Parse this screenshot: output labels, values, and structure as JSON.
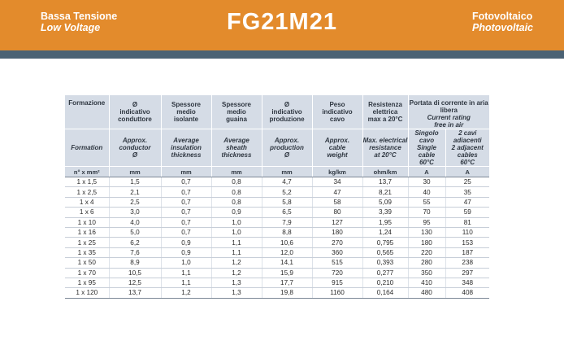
{
  "header": {
    "left_it": "Bassa Tensione",
    "left_en": "Low Voltage",
    "title": "FG21M21",
    "right_it": "Fotovoltaico",
    "right_en": "Photovoltaic"
  },
  "colors": {
    "header": "#e38b2c",
    "band": "#4b6274",
    "table_head": "#d5dce6"
  },
  "table": {
    "head_it": {
      "formation": "Formazione",
      "diam_conductor": [
        "Ø",
        "indicativo",
        "conduttore"
      ],
      "insulation": [
        "Spessore",
        "medio",
        "isolante"
      ],
      "sheath": [
        "Spessore",
        "medio",
        "guaina"
      ],
      "diam_production": [
        "Ø",
        "indicativo",
        "produzione"
      ],
      "weight": [
        "Peso",
        "indicativo",
        "cavo"
      ],
      "resistance": [
        "Resistenza",
        "elettrica",
        "max a 20°C"
      ],
      "current": "Portata di corrente in aria libera"
    },
    "head_en": {
      "formation": "Formation",
      "diam_conductor": [
        "Approx.",
        "conductor",
        "Ø"
      ],
      "insulation": [
        "Average",
        "insulation",
        "thickness"
      ],
      "sheath": [
        "Average",
        "sheath",
        "thickness"
      ],
      "diam_production": [
        "Approx.",
        "production",
        "Ø"
      ],
      "weight": [
        "Approx.",
        "cable",
        "weight"
      ],
      "resistance": [
        "Max. electrical",
        "resistance",
        "at 20°C"
      ],
      "current": [
        "Current rating",
        "free in air"
      ],
      "single": [
        "Singolo cavo",
        "Single cable",
        "60°C"
      ],
      "double": [
        "2 cavi adiacenti",
        "2 adjacent cables",
        "60°C"
      ]
    },
    "units": [
      "n° x mm²",
      "mm",
      "mm",
      "mm",
      "mm",
      "kg/km",
      "ohm/km",
      "A",
      "A"
    ],
    "rows": [
      [
        "1 x 1,5",
        "1,5",
        "0,7",
        "0,8",
        "4,7",
        "34",
        "13,7",
        "30",
        "25"
      ],
      [
        "1 x 2,5",
        "2,1",
        "0,7",
        "0,8",
        "5,2",
        "47",
        "8,21",
        "40",
        "35"
      ],
      [
        "1 x 4",
        "2,5",
        "0,7",
        "0,8",
        "5,8",
        "58",
        "5,09",
        "55",
        "47"
      ],
      [
        "1 x 6",
        "3,0",
        "0,7",
        "0,9",
        "6,5",
        "80",
        "3,39",
        "70",
        "59"
      ],
      [
        "1 x 10",
        "4,0",
        "0,7",
        "1,0",
        "7,9",
        "127",
        "1,95",
        "95",
        "81"
      ],
      [
        "1 x 16",
        "5,0",
        "0,7",
        "1,0",
        "8,8",
        "180",
        "1,24",
        "130",
        "110"
      ],
      [
        "1 x 25",
        "6,2",
        "0,9",
        "1,1",
        "10,6",
        "270",
        "0,795",
        "180",
        "153"
      ],
      [
        "1 x 35",
        "7,6",
        "0,9",
        "1,1",
        "12,0",
        "360",
        "0,565",
        "220",
        "187"
      ],
      [
        "1 x 50",
        "8,9",
        "1,0",
        "1,2",
        "14,1",
        "515",
        "0,393",
        "280",
        "238"
      ],
      [
        "1 x 70",
        "10,5",
        "1,1",
        "1,2",
        "15,9",
        "720",
        "0,277",
        "350",
        "297"
      ],
      [
        "1 x 95",
        "12,5",
        "1,1",
        "1,3",
        "17,7",
        "915",
        "0,210",
        "410",
        "348"
      ],
      [
        "1 x 120",
        "13,7",
        "1,2",
        "1,3",
        "19,8",
        "1160",
        "0,164",
        "480",
        "408"
      ]
    ]
  }
}
